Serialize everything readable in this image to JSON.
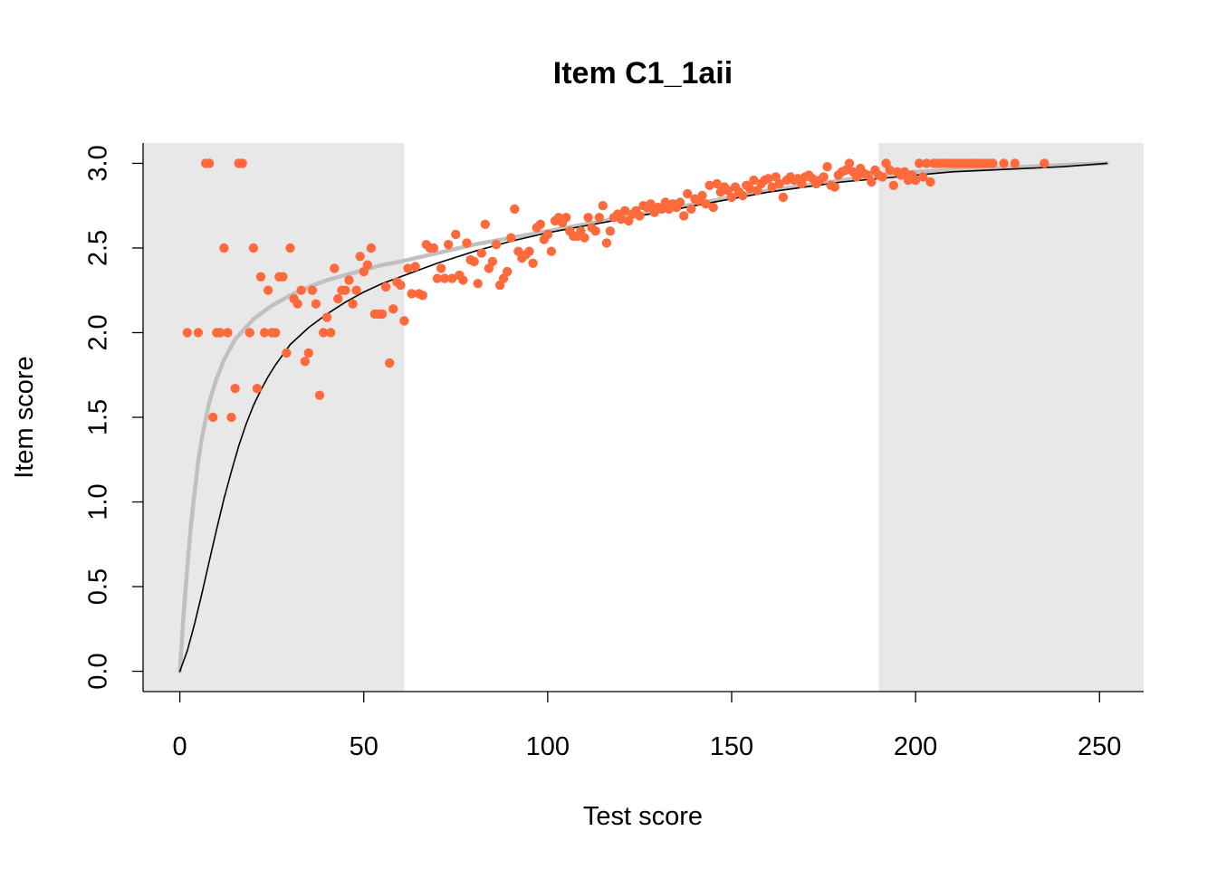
{
  "chart_data": {
    "type": "scatter",
    "title": "Item C1_1aii",
    "xlabel": "Test score",
    "ylabel": "Item score",
    "xlim": [
      -10,
      262
    ],
    "ylim": [
      -0.12,
      3.12
    ],
    "xticks": [
      0,
      50,
      100,
      150,
      200,
      250
    ],
    "xtick_labels": [
      "0",
      "50",
      "100",
      "150",
      "200",
      "250"
    ],
    "yticks": [
      0,
      0.5,
      1,
      1.5,
      2,
      2.5,
      3
    ],
    "ytick_labels": [
      "0.0",
      "0.5",
      "1.0",
      "1.5",
      "2.0",
      "2.5",
      "3.0"
    ],
    "grid": false,
    "shaded_regions": [
      {
        "x0": -10,
        "x1": 61,
        "color": "#e8e8e8"
      },
      {
        "x0": 190,
        "x1": 262,
        "color": "#e8e8e8"
      }
    ],
    "point_color": "#ff6a3d",
    "points": [
      [
        2,
        2.0
      ],
      [
        5,
        2.0
      ],
      [
        7,
        3.0
      ],
      [
        8,
        3.0
      ],
      [
        9,
        1.5
      ],
      [
        10,
        2.0
      ],
      [
        11,
        2.0
      ],
      [
        12,
        2.5
      ],
      [
        13,
        2.0
      ],
      [
        14,
        1.5
      ],
      [
        15,
        1.67
      ],
      [
        16,
        3.0
      ],
      [
        17,
        3.0
      ],
      [
        19,
        2.0
      ],
      [
        20,
        2.5
      ],
      [
        21,
        1.67
      ],
      [
        22,
        2.33
      ],
      [
        23,
        2.0
      ],
      [
        24,
        2.25
      ],
      [
        25,
        2.0
      ],
      [
        26,
        2.0
      ],
      [
        27,
        2.33
      ],
      [
        28,
        2.33
      ],
      [
        29,
        1.88
      ],
      [
        30,
        2.5
      ],
      [
        31,
        2.2
      ],
      [
        32,
        2.17
      ],
      [
        33,
        2.25
      ],
      [
        34,
        1.83
      ],
      [
        35,
        1.88
      ],
      [
        36,
        2.25
      ],
      [
        37,
        2.17
      ],
      [
        38,
        1.63
      ],
      [
        39,
        2.0
      ],
      [
        40,
        2.09
      ],
      [
        41,
        2.0
      ],
      [
        42,
        2.38
      ],
      [
        43,
        2.2
      ],
      [
        44,
        2.25
      ],
      [
        45,
        2.25
      ],
      [
        46,
        2.31
      ],
      [
        47,
        2.17
      ],
      [
        48,
        2.25
      ],
      [
        49,
        2.45
      ],
      [
        50,
        2.36
      ],
      [
        51,
        2.4
      ],
      [
        52,
        2.5
      ],
      [
        53,
        2.11
      ],
      [
        54,
        2.11
      ],
      [
        55,
        2.11
      ],
      [
        56,
        2.27
      ],
      [
        57,
        1.82
      ],
      [
        58,
        2.14
      ],
      [
        59,
        2.3
      ],
      [
        60,
        2.28
      ],
      [
        61,
        2.07
      ],
      [
        62,
        2.38
      ],
      [
        63,
        2.23
      ],
      [
        64,
        2.39
      ],
      [
        65,
        2.23
      ],
      [
        66,
        2.22
      ],
      [
        67,
        2.52
      ],
      [
        68,
        2.5
      ],
      [
        69,
        2.5
      ],
      [
        70,
        2.32
      ],
      [
        71,
        2.38
      ],
      [
        72,
        2.32
      ],
      [
        73,
        2.52
      ],
      [
        74,
        2.32
      ],
      [
        75,
        2.58
      ],
      [
        76,
        2.34
      ],
      [
        77,
        2.31
      ],
      [
        78,
        2.53
      ],
      [
        79,
        2.43
      ],
      [
        80,
        2.42
      ],
      [
        81,
        2.29
      ],
      [
        82,
        2.47
      ],
      [
        83,
        2.64
      ],
      [
        84,
        2.38
      ],
      [
        85,
        2.42
      ],
      [
        86,
        2.52
      ],
      [
        87,
        2.28
      ],
      [
        88,
        2.32
      ],
      [
        89,
        2.36
      ],
      [
        90,
        2.56
      ],
      [
        91,
        2.73
      ],
      [
        92,
        2.48
      ],
      [
        93,
        2.44
      ],
      [
        94,
        2.46
      ],
      [
        95,
        2.48
      ],
      [
        96,
        2.41
      ],
      [
        97,
        2.62
      ],
      [
        98,
        2.64
      ],
      [
        99,
        2.55
      ],
      [
        100,
        2.58
      ],
      [
        101,
        2.48
      ],
      [
        102,
        2.66
      ],
      [
        103,
        2.68
      ],
      [
        104,
        2.65
      ],
      [
        105,
        2.68
      ],
      [
        106,
        2.6
      ],
      [
        107,
        2.57
      ],
      [
        108,
        2.57
      ],
      [
        109,
        2.6
      ],
      [
        110,
        2.56
      ],
      [
        111,
        2.68
      ],
      [
        112,
        2.62
      ],
      [
        113,
        2.6
      ],
      [
        114,
        2.68
      ],
      [
        115,
        2.75
      ],
      [
        116,
        2.53
      ],
      [
        117,
        2.6
      ],
      [
        118,
        2.68
      ],
      [
        119,
        2.7
      ],
      [
        120,
        2.67
      ],
      [
        121,
        2.72
      ],
      [
        122,
        2.66
      ],
      [
        123,
        2.7
      ],
      [
        124,
        2.72
      ],
      [
        125,
        2.69
      ],
      [
        126,
        2.75
      ],
      [
        127,
        2.74
      ],
      [
        128,
        2.76
      ],
      [
        129,
        2.71
      ],
      [
        130,
        2.74
      ],
      [
        131,
        2.73
      ],
      [
        132,
        2.77
      ],
      [
        133,
        2.73
      ],
      [
        134,
        2.76
      ],
      [
        135,
        2.74
      ],
      [
        136,
        2.77
      ],
      [
        137,
        2.69
      ],
      [
        138,
        2.82
      ],
      [
        139,
        2.73
      ],
      [
        140,
        2.79
      ],
      [
        141,
        2.78
      ],
      [
        142,
        2.81
      ],
      [
        143,
        2.76
      ],
      [
        144,
        2.87
      ],
      [
        145,
        2.74
      ],
      [
        146,
        2.88
      ],
      [
        147,
        2.83
      ],
      [
        148,
        2.86
      ],
      [
        149,
        2.84
      ],
      [
        150,
        2.8
      ],
      [
        151,
        2.86
      ],
      [
        152,
        2.83
      ],
      [
        153,
        2.81
      ],
      [
        154,
        2.87
      ],
      [
        155,
        2.85
      ],
      [
        156,
        2.9
      ],
      [
        157,
        2.84
      ],
      [
        158,
        2.88
      ],
      [
        159,
        2.9
      ],
      [
        160,
        2.91
      ],
      [
        161,
        2.86
      ],
      [
        162,
        2.92
      ],
      [
        163,
        2.88
      ],
      [
        164,
        2.8
      ],
      [
        165,
        2.9
      ],
      [
        166,
        2.92
      ],
      [
        167,
        2.9
      ],
      [
        168,
        2.91
      ],
      [
        169,
        2.88
      ],
      [
        170,
        2.92
      ],
      [
        171,
        2.93
      ],
      [
        172,
        2.91
      ],
      [
        173,
        2.88
      ],
      [
        174,
        2.9
      ],
      [
        175,
        2.92
      ],
      [
        176,
        2.98
      ],
      [
        177,
        2.87
      ],
      [
        178,
        2.86
      ],
      [
        179,
        2.93
      ],
      [
        180,
        2.95
      ],
      [
        181,
        2.96
      ],
      [
        182,
        3.0
      ],
      [
        183,
        2.95
      ],
      [
        184,
        2.92
      ],
      [
        185,
        2.97
      ],
      [
        186,
        2.94
      ],
      [
        187,
        2.93
      ],
      [
        188,
        2.89
      ],
      [
        189,
        2.96
      ],
      [
        190,
        2.93
      ],
      [
        191,
        2.92
      ],
      [
        192,
        3.0
      ],
      [
        193,
        2.96
      ],
      [
        194,
        2.87
      ],
      [
        195,
        2.95
      ],
      [
        196,
        2.93
      ],
      [
        197,
        2.95
      ],
      [
        198,
        2.9
      ],
      [
        199,
        2.93
      ],
      [
        200,
        2.9
      ],
      [
        201,
        3.0
      ],
      [
        202,
        2.92
      ],
      [
        203,
        3.0
      ],
      [
        204,
        2.89
      ],
      [
        205,
        3.0
      ],
      [
        206,
        3.0
      ],
      [
        207,
        3.0
      ],
      [
        208,
        3.0
      ],
      [
        209,
        3.0
      ],
      [
        210,
        3.0
      ],
      [
        211,
        3.0
      ],
      [
        212,
        3.0
      ],
      [
        213,
        3.0
      ],
      [
        214,
        3.0
      ],
      [
        215,
        3.0
      ],
      [
        216,
        3.0
      ],
      [
        217,
        3.0
      ],
      [
        218,
        3.0
      ],
      [
        219,
        3.0
      ],
      [
        220,
        3.0
      ],
      [
        221,
        3.0
      ],
      [
        224,
        3.0
      ],
      [
        227,
        3.0
      ],
      [
        235,
        3.0
      ]
    ],
    "curves": [
      {
        "color": "#c0c0c0",
        "width": 4.5,
        "points": [
          [
            0,
            0
          ],
          [
            1,
            0.33
          ],
          [
            2,
            0.61
          ],
          [
            3,
            0.86
          ],
          [
            4,
            1.06
          ],
          [
            5,
            1.24
          ],
          [
            6,
            1.38
          ],
          [
            8,
            1.59
          ],
          [
            10,
            1.73
          ],
          [
            12,
            1.84
          ],
          [
            15,
            1.96
          ],
          [
            20,
            2.08
          ],
          [
            25,
            2.16
          ],
          [
            30,
            2.22
          ],
          [
            35,
            2.27
          ],
          [
            40,
            2.31
          ],
          [
            45,
            2.34
          ],
          [
            50,
            2.37
          ],
          [
            55,
            2.4
          ],
          [
            60,
            2.42
          ],
          [
            70,
            2.47
          ],
          [
            80,
            2.52
          ],
          [
            90,
            2.56
          ],
          [
            100,
            2.6
          ],
          [
            110,
            2.64
          ],
          [
            120,
            2.68
          ],
          [
            130,
            2.72
          ],
          [
            140,
            2.76
          ],
          [
            150,
            2.8
          ],
          [
            160,
            2.84
          ],
          [
            170,
            2.87
          ],
          [
            180,
            2.9
          ],
          [
            190,
            2.93
          ],
          [
            200,
            2.95
          ],
          [
            210,
            2.96
          ],
          [
            220,
            2.97
          ],
          [
            230,
            2.98
          ],
          [
            240,
            2.99
          ],
          [
            252,
            3.0
          ]
        ]
      },
      {
        "color": "#000000",
        "width": 1.6,
        "points": [
          [
            0,
            0
          ],
          [
            2,
            0.12
          ],
          [
            4,
            0.28
          ],
          [
            6,
            0.46
          ],
          [
            8,
            0.65
          ],
          [
            10,
            0.84
          ],
          [
            12,
            1.02
          ],
          [
            14,
            1.18
          ],
          [
            16,
            1.33
          ],
          [
            18,
            1.46
          ],
          [
            20,
            1.57
          ],
          [
            22,
            1.66
          ],
          [
            24,
            1.74
          ],
          [
            26,
            1.81
          ],
          [
            28,
            1.87
          ],
          [
            30,
            1.93
          ],
          [
            35,
            2.03
          ],
          [
            40,
            2.11
          ],
          [
            45,
            2.18
          ],
          [
            50,
            2.24
          ],
          [
            55,
            2.29
          ],
          [
            60,
            2.33
          ],
          [
            70,
            2.41
          ],
          [
            80,
            2.48
          ],
          [
            90,
            2.54
          ],
          [
            100,
            2.59
          ],
          [
            110,
            2.63
          ],
          [
            120,
            2.67
          ],
          [
            130,
            2.71
          ],
          [
            140,
            2.75
          ],
          [
            150,
            2.79
          ],
          [
            160,
            2.83
          ],
          [
            170,
            2.86
          ],
          [
            180,
            2.89
          ],
          [
            190,
            2.91
          ],
          [
            200,
            2.93
          ],
          [
            210,
            2.95
          ],
          [
            220,
            2.96
          ],
          [
            230,
            2.97
          ],
          [
            240,
            2.98
          ],
          [
            252,
            3.0
          ]
        ]
      }
    ]
  }
}
